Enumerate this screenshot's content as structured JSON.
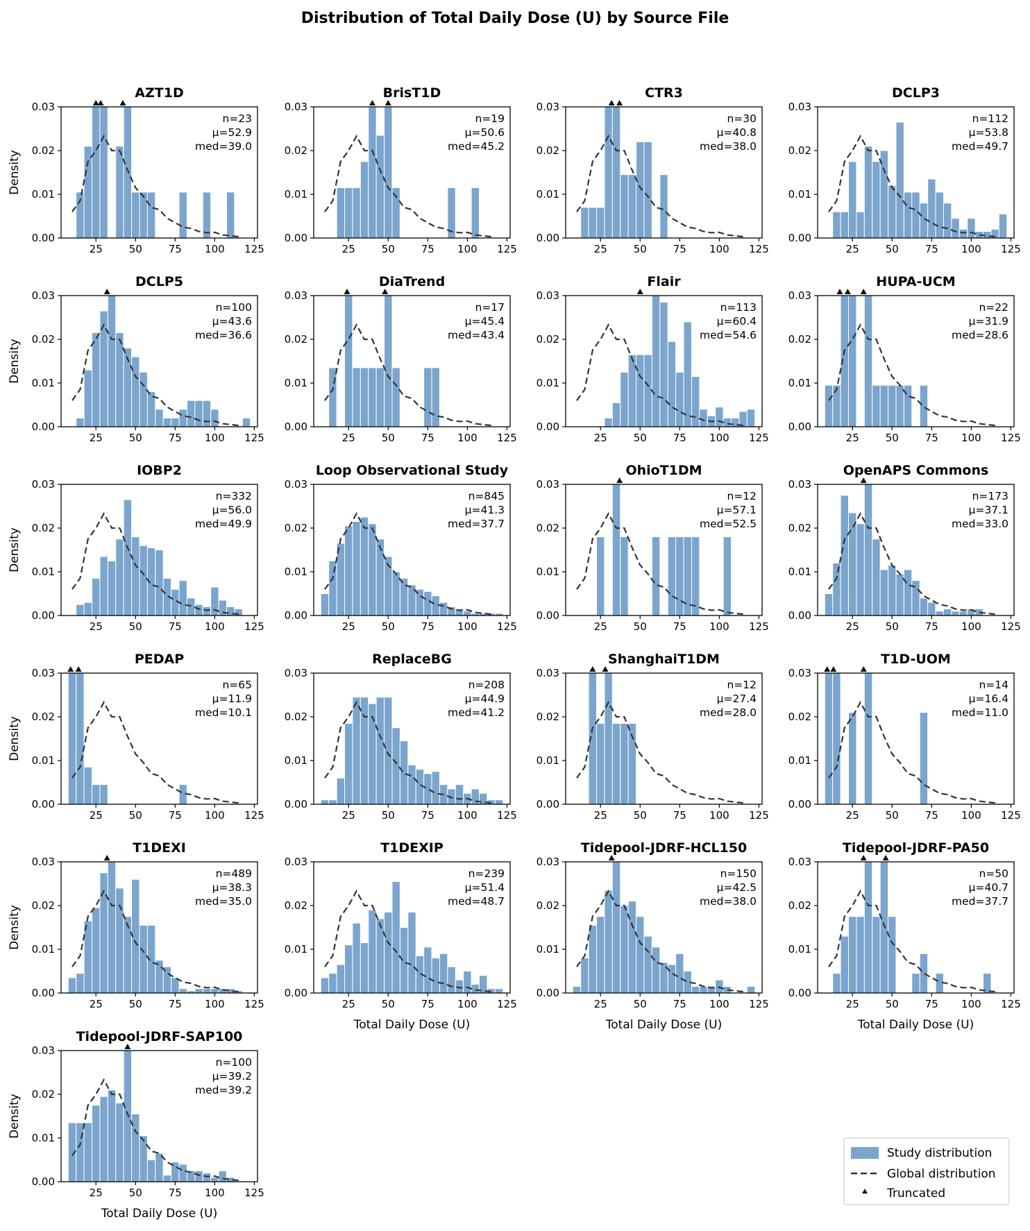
{
  "colors": {
    "bar": "#7ba5cd",
    "global_line": "#333333",
    "marker": "#111111"
  },
  "chart_data": {
    "type": "bar",
    "title": "Distribution of Total Daily Dose (U) by Source File",
    "xlabel": "Total Daily Dose (U)",
    "ylabel": "Density",
    "xlim": [
      3,
      127
    ],
    "ylim": [
      0,
      0.03
    ],
    "xticks": [
      25,
      50,
      75,
      100,
      125
    ],
    "yticks": [
      0.0,
      0.01,
      0.02,
      0.03
    ],
    "ytick_labels": [
      "0.00",
      "0.01",
      "0.02",
      "0.03"
    ],
    "bin_centers": [
      10,
      15,
      20,
      25,
      30,
      35,
      40,
      45,
      50,
      55,
      60,
      65,
      70,
      75,
      80,
      85,
      90,
      95,
      100,
      105,
      110,
      115,
      120
    ],
    "global_distribution": {
      "x": [
        10,
        15,
        20,
        25,
        30,
        35,
        40,
        45,
        50,
        55,
        60,
        65,
        70,
        75,
        80,
        85,
        90,
        95,
        100,
        105,
        110,
        115
      ],
      "y": [
        0.006,
        0.0085,
        0.0175,
        0.02,
        0.0233,
        0.02,
        0.02,
        0.0155,
        0.0115,
        0.0095,
        0.007,
        0.0065,
        0.0045,
        0.0035,
        0.0025,
        0.0022,
        0.0015,
        0.0012,
        0.0013,
        0.0007,
        0.0005,
        0.0003
      ]
    },
    "legend": {
      "position": "lower-right",
      "entries": [
        "Study distribution",
        "Global distribution",
        "Truncated"
      ]
    },
    "series": [
      {
        "name": "AZT1D",
        "n": "n=23",
        "mean": "μ=52.9",
        "median": "med=39.0",
        "values": [
          0,
          0.0105,
          0.021,
          0.03,
          0.03,
          0,
          0.021,
          0.03,
          0.0105,
          0.0105,
          0.0105,
          0,
          0,
          0,
          0.0105,
          0,
          0,
          0.0105,
          0,
          0,
          0.0105,
          0,
          0
        ],
        "truncated": [
          25,
          28,
          42
        ]
      },
      {
        "name": "BrisT1D",
        "n": "n=19",
        "mean": "μ=50.6",
        "median": "med=45.2",
        "values": [
          0,
          0,
          0.0115,
          0.0115,
          0.0115,
          0.0175,
          0.03,
          0.0235,
          0.03,
          0.0115,
          0,
          0,
          0,
          0,
          0,
          0,
          0.0115,
          0,
          0,
          0.0115,
          0,
          0,
          0
        ],
        "truncated": [
          40,
          50
        ]
      },
      {
        "name": "CTR3",
        "n": "n=30",
        "mean": "μ=40.8",
        "median": "med=38.0",
        "values": [
          0,
          0.007,
          0.007,
          0.007,
          0.03,
          0.03,
          0.0145,
          0.0145,
          0.022,
          0.022,
          0,
          0.0145,
          0,
          0,
          0,
          0,
          0,
          0,
          0,
          0,
          0,
          0,
          0
        ],
        "truncated": [
          32,
          37
        ]
      },
      {
        "name": "DCLP3",
        "n": "n=112",
        "mean": "μ=53.8",
        "median": "med=49.7",
        "values": [
          0,
          0.006,
          0.006,
          0.0175,
          0.006,
          0.021,
          0.0175,
          0.02,
          0.012,
          0.0265,
          0.0105,
          0.0105,
          0.008,
          0.0135,
          0.0105,
          0.008,
          0.0045,
          0.002,
          0.0045,
          0.0015,
          0.0015,
          0.002,
          0.0055
        ],
        "truncated": []
      },
      {
        "name": "DCLP5",
        "n": "n=100",
        "mean": "μ=43.6",
        "median": "med=36.6",
        "values": [
          0,
          0.002,
          0.013,
          0.0215,
          0.0265,
          0.03,
          0.0215,
          0.018,
          0.016,
          0.0125,
          0.008,
          0.004,
          0.002,
          0.002,
          0.004,
          0.006,
          0.006,
          0.006,
          0.004,
          0,
          0,
          0,
          0.002
        ],
        "truncated": [
          32
        ]
      },
      {
        "name": "DiaTrend",
        "n": "n=17",
        "mean": "μ=45.4",
        "median": "med=43.4",
        "values": [
          0,
          0.0135,
          0,
          0.03,
          0.0135,
          0.0135,
          0.0135,
          0.0135,
          0.03,
          0.0135,
          0,
          0,
          0,
          0.0135,
          0.0135,
          0,
          0,
          0,
          0,
          0,
          0,
          0,
          0
        ],
        "truncated": [
          24,
          48
        ]
      },
      {
        "name": "Flair",
        "n": "n=113",
        "mean": "μ=60.4",
        "median": "med=54.6",
        "values": [
          0,
          0,
          0,
          0,
          0.002,
          0.0055,
          0.0125,
          0.0165,
          0.0165,
          0.0165,
          0.03,
          0.0285,
          0.0195,
          0.0125,
          0.024,
          0.0115,
          0.004,
          0.0025,
          0.0045,
          0.002,
          0.002,
          0.0035,
          0.004
        ],
        "truncated": [
          50
        ]
      },
      {
        "name": "HUPA-UCM",
        "n": "n=22",
        "mean": "μ=31.9",
        "median": "med=28.6",
        "values": [
          0.0095,
          0.0095,
          0.03,
          0.03,
          0,
          0.03,
          0.0095,
          0.0095,
          0.0095,
          0.0095,
          0.0095,
          0,
          0.0095,
          0,
          0,
          0,
          0,
          0,
          0,
          0,
          0,
          0,
          0
        ],
        "truncated": [
          17,
          22,
          32
        ]
      },
      {
        "name": "IOBP2",
        "n": "n=332",
        "mean": "μ=56.0",
        "median": "med=49.9",
        "values": [
          0,
          0.0025,
          0.003,
          0.0085,
          0.0135,
          0.0125,
          0.0175,
          0.0265,
          0.018,
          0.016,
          0.0155,
          0.015,
          0.0085,
          0.006,
          0.008,
          0.004,
          0.0025,
          0.002,
          0.0065,
          0.0035,
          0.002,
          0.0015,
          0
        ],
        "truncated": []
      },
      {
        "name": "Loop Observational Study",
        "n": "n=845",
        "mean": "μ=41.3",
        "median": "med=37.7",
        "values": [
          0.005,
          0.0125,
          0.0165,
          0.0205,
          0.0215,
          0.0225,
          0.021,
          0.0175,
          0.0135,
          0.01,
          0.0085,
          0.007,
          0.006,
          0.0055,
          0.0045,
          0.003,
          0.002,
          0.0015,
          0.001,
          0.0005,
          0.0005,
          0.0005,
          0.0005
        ],
        "truncated": []
      },
      {
        "name": "OhioT1DM",
        "n": "n=12",
        "mean": "μ=57.1",
        "median": "med=52.5",
        "values": [
          0,
          0,
          0,
          0.018,
          0,
          0.03,
          0.018,
          0,
          0,
          0,
          0.018,
          0,
          0.018,
          0.018,
          0.018,
          0.018,
          0,
          0,
          0,
          0.018,
          0,
          0,
          0
        ],
        "truncated": [
          37
        ]
      },
      {
        "name": "OpenAPS Commons",
        "n": "n=173",
        "mean": "μ=37.1",
        "median": "med=33.0",
        "values": [
          0.005,
          0.012,
          0.0275,
          0.0235,
          0.021,
          0.03,
          0.0175,
          0.0105,
          0.0115,
          0.0095,
          0.0105,
          0.008,
          0.004,
          0.003,
          0.001,
          0.0015,
          0.001,
          0.001,
          0.0015,
          0.0015,
          0,
          0,
          0
        ],
        "truncated": [
          32
        ]
      },
      {
        "name": "PEDAP",
        "n": "n=65",
        "mean": "μ=11.9",
        "median": "med=10.1",
        "values": [
          0.03,
          0.03,
          0.0085,
          0.0045,
          0.0045,
          0,
          0,
          0,
          0,
          0,
          0,
          0,
          0,
          0,
          0.0045,
          0,
          0,
          0,
          0,
          0,
          0,
          0,
          0
        ],
        "truncated": [
          9,
          14
        ]
      },
      {
        "name": "ReplaceBG",
        "n": "n=208",
        "mean": "μ=44.9",
        "median": "med=41.2",
        "values": [
          0.001,
          0.001,
          0.006,
          0.0185,
          0.0245,
          0.0245,
          0.023,
          0.0245,
          0.0245,
          0.0175,
          0.0145,
          0.009,
          0.008,
          0.007,
          0.0075,
          0.0045,
          0.0035,
          0.0045,
          0.0025,
          0.0035,
          0.0025,
          0.001,
          0.001
        ],
        "truncated": []
      },
      {
        "name": "ShanghaiT1DM",
        "n": "n=12",
        "mean": "μ=27.4",
        "median": "med=28.0",
        "values": [
          0,
          0,
          0.03,
          0.0185,
          0.03,
          0.0185,
          0.0185,
          0.0185,
          0,
          0,
          0,
          0,
          0,
          0,
          0,
          0,
          0,
          0,
          0,
          0,
          0,
          0,
          0
        ],
        "truncated": [
          20,
          28
        ]
      },
      {
        "name": "T1D-UOM",
        "n": "n=14",
        "mean": "μ=16.4",
        "median": "med=11.0",
        "values": [
          0.03,
          0.03,
          0,
          0.021,
          0,
          0.03,
          0,
          0,
          0,
          0,
          0,
          0,
          0.021,
          0,
          0,
          0,
          0,
          0,
          0,
          0,
          0,
          0,
          0
        ],
        "truncated": [
          9,
          13,
          32
        ]
      },
      {
        "name": "T1DEXI",
        "n": "n=489",
        "mean": "μ=38.3",
        "median": "med=35.0",
        "values": [
          0.0035,
          0.0045,
          0.0165,
          0.0195,
          0.0275,
          0.03,
          0.024,
          0.0175,
          0.026,
          0.0155,
          0.0155,
          0.0075,
          0.006,
          0.0035,
          0.001,
          0.0005,
          0.001,
          0.001,
          0.001,
          0.001,
          0.001,
          0.0005,
          0
        ],
        "truncated": [
          32
        ]
      },
      {
        "name": "T1DEXIP",
        "n": "n=239",
        "mean": "μ=51.4",
        "median": "med=48.7",
        "values": [
          0.0035,
          0.0045,
          0.0065,
          0.011,
          0.016,
          0.0115,
          0.019,
          0.017,
          0.0185,
          0.0255,
          0.015,
          0.0185,
          0.0085,
          0.0105,
          0.008,
          0.009,
          0.006,
          0.003,
          0.005,
          0.002,
          0.004,
          0.001,
          0.001
        ],
        "truncated": []
      },
      {
        "name": "Tidepool-JDRF-HCL150",
        "n": "n=150",
        "mean": "μ=42.5",
        "median": "med=38.0",
        "values": [
          0.0015,
          0.008,
          0.0155,
          0.0175,
          0.0235,
          0.03,
          0.02,
          0.021,
          0.0175,
          0.013,
          0.0105,
          0.007,
          0.0065,
          0.009,
          0.005,
          0.0015,
          0.0015,
          0.0015,
          0.003,
          0.0015,
          0,
          0,
          0.0015
        ],
        "truncated": [
          32
        ]
      },
      {
        "name": "Tidepool-JDRF-PA50",
        "n": "n=50",
        "mean": "μ=40.7",
        "median": "med=37.7",
        "values": [
          0,
          0.0045,
          0.013,
          0.0175,
          0.0175,
          0.03,
          0.0175,
          0.03,
          0.0175,
          0,
          0,
          0.0045,
          0.009,
          0,
          0.0045,
          0,
          0,
          0,
          0,
          0,
          0.0045,
          0,
          0
        ],
        "truncated": [
          32,
          46
        ]
      },
      {
        "name": "Tidepool-JDRF-SAP100",
        "n": "n=100",
        "mean": "μ=39.2",
        "median": "med=39.2",
        "values": [
          0.0135,
          0.0135,
          0.0135,
          0.0175,
          0.0195,
          0.021,
          0.018,
          0.03,
          0.0155,
          0.0105,
          0.005,
          0.0065,
          0.0015,
          0.0045,
          0.004,
          0.0025,
          0.0025,
          0.002,
          0.001,
          0.0025,
          0.001,
          0,
          0
        ],
        "truncated": [
          45
        ]
      }
    ]
  }
}
